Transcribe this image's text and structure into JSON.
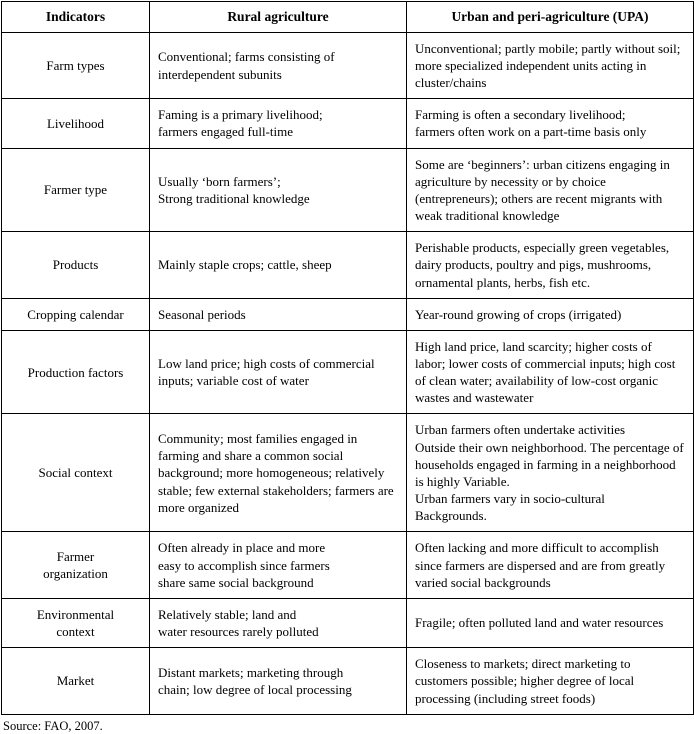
{
  "table": {
    "headers": [
      "Indicators",
      "Rural agriculture",
      "Urban and peri-agriculture (UPA)"
    ],
    "rows": [
      {
        "indicator": "Farm types",
        "rural": "Conventional; farms consisting of\ninterdependent subunits",
        "urban": "Unconventional; partly mobile; partly without soil; more specialized independent units acting in cluster/chains"
      },
      {
        "indicator": "Livelihood",
        "rural": "Faming is a primary livelihood;\nfarmers engaged full-time",
        "urban": "Farming is often a secondary livelihood;\nfarmers often work on a part-time basis only"
      },
      {
        "indicator": "Farmer type",
        "rural": "Usually ‘born farmers’;\nStrong traditional knowledge",
        "urban": "Some are ‘beginners’: urban citizens engaging in agriculture by necessity or by choice (entrepreneurs); others are recent migrants with weak traditional knowledge"
      },
      {
        "indicator": "Products",
        "rural": "Mainly staple crops; cattle, sheep",
        "urban": "Perishable products, especially green vegetables, dairy products, poultry and pigs, mushrooms, ornamental plants, herbs, fish etc."
      },
      {
        "indicator": "Cropping calendar",
        "rural": "Seasonal periods",
        "urban": "Year-round growing of crops (irrigated)"
      },
      {
        "indicator": "Production factors",
        "rural": "Low land price; high costs of commercial inputs; variable cost of water",
        "urban": "High land price, land scarcity; higher costs of labor; lower costs of commercial inputs; high cost of clean water; availability of low-cost organic wastes and wastewater"
      },
      {
        "indicator": "Social context",
        "rural": "Community; most families engaged in farming and share a common social background; more homogeneous; relatively stable; few external stakeholders; farmers are more organized",
        "urban": "Urban farmers often undertake activities\nOutside their own neighborhood. The percentage of households engaged in farming in a neighborhood is highly Variable.\nUrban farmers vary in socio-cultural\nBackgrounds."
      },
      {
        "indicator": "Farmer\norganization",
        "rural": "Often already in place and more\neasy to accomplish since farmers\nshare same social background",
        "urban": "Often lacking and more difficult to accomplish since farmers are dispersed and are from greatly varied social backgrounds"
      },
      {
        "indicator": "Environmental\ncontext",
        "rural": "Relatively stable; land and\nwater resources rarely polluted",
        "urban": "Fragile; often polluted land and water resources"
      },
      {
        "indicator": "Market",
        "rural": "Distant markets; marketing through\nchain; low degree of local processing",
        "urban": "Closeness to markets; direct marketing to customers possible; higher degree of local processing (including street foods)"
      }
    ]
  },
  "source": "Source: FAO, 2007."
}
